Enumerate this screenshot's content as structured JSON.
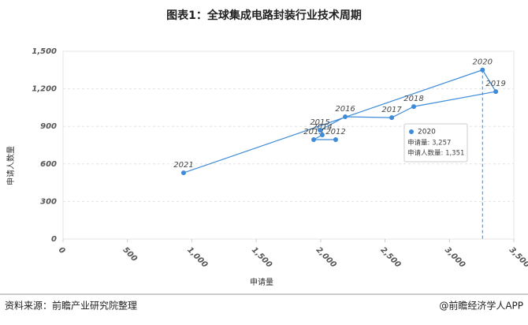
{
  "chart_data": {
    "type": "scatter",
    "title": "图表1：全球集成电路封装行业技术周期",
    "x_label": "申请量",
    "y_label": "申请人数量",
    "x": [
      2117,
      1946,
      2013,
      1995,
      2191,
      2552,
      2723,
      3360,
      3257,
      936
    ],
    "values": [
      794,
      794,
      832,
      870,
      977,
      970,
      1058,
      1178,
      1351,
      529
    ],
    "point_labels": [
      "2012",
      "2013",
      "2014",
      "2015",
      "2016",
      "2017",
      "2018",
      "2019",
      "2020",
      "2021"
    ],
    "color": "#3d8bd9",
    "xlim": [
      0,
      3500
    ],
    "xticks": [
      0,
      500,
      {
        "value": 1000,
        "label": "1,000"
      },
      {
        "value": 1500,
        "label": "1,500"
      },
      {
        "value": 2000,
        "label": "2,000"
      },
      {
        "value": 2500,
        "label": "2,500"
      },
      {
        "value": 3000,
        "label": "3,000"
      },
      {
        "value": 3500,
        "label": "3,500"
      }
    ],
    "ylim": [
      0,
      1500
    ],
    "yticks": [
      0,
      300,
      600,
      900,
      {
        "value": 1200,
        "label": "1,200"
      },
      {
        "value": 1500,
        "label": "1,500"
      }
    ],
    "grid": true,
    "tooltip": {
      "title": "2020",
      "lines": [
        "申请量: 3,257",
        "申请人数量: 1,351"
      ]
    },
    "source": "资料来源：前瞻产业研究院整理",
    "credit": "@前瞻经济学人APP"
  }
}
